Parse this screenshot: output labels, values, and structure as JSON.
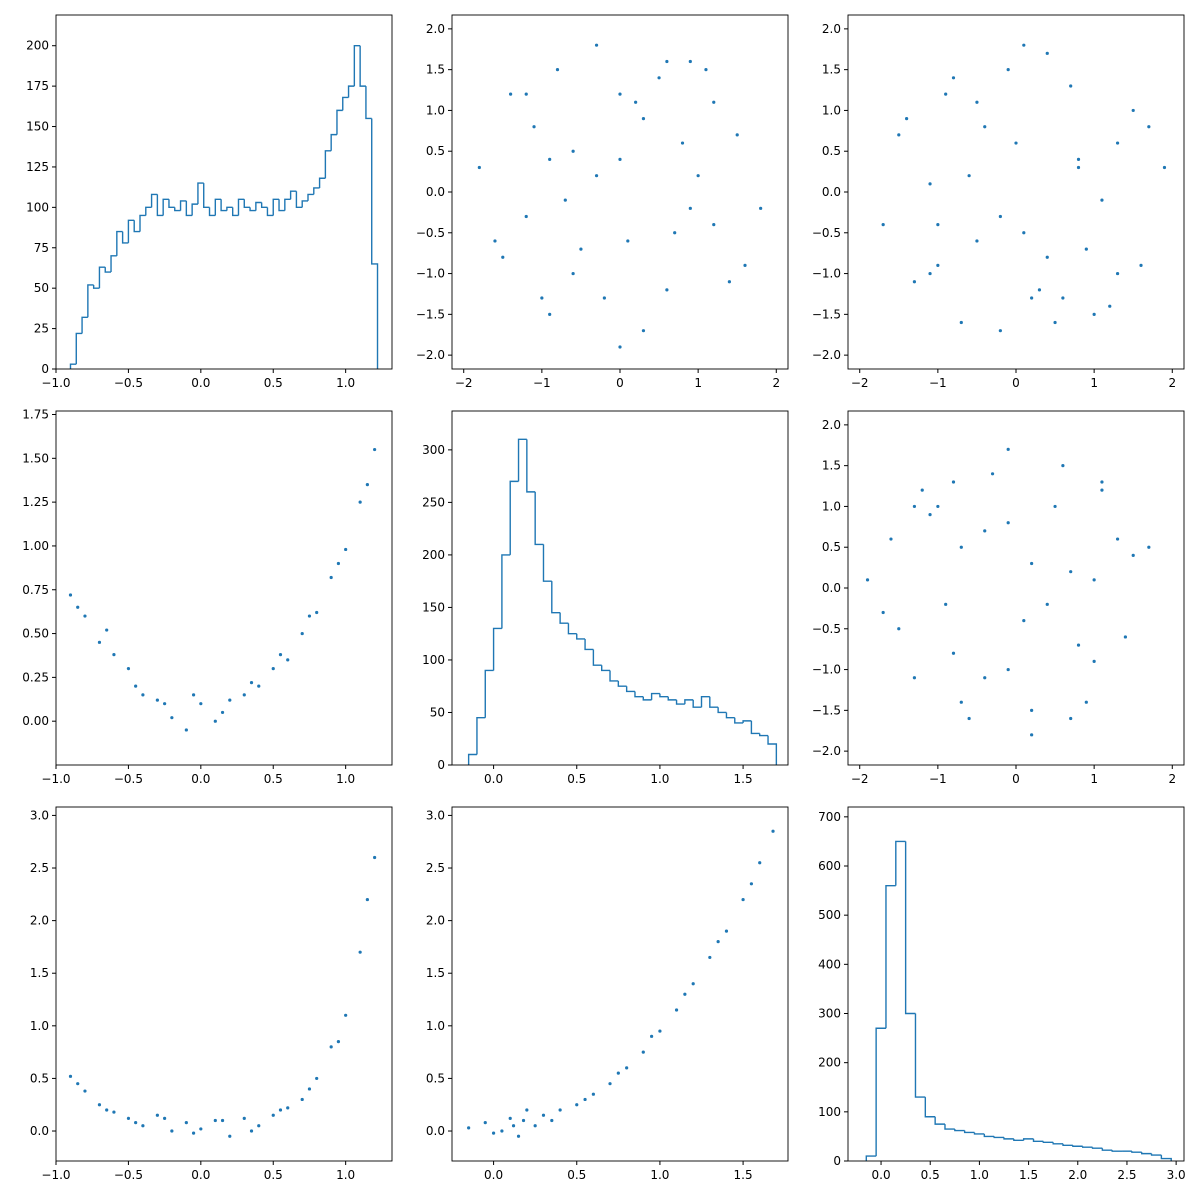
{
  "chart_data": [
    {
      "type": "histogram",
      "color": "#1f77b4",
      "xlim": [
        -1.0,
        1.32
      ],
      "ylim": [
        0,
        219
      ],
      "xticks": [
        {
          "value": -1.0,
          "label": "−1.0"
        },
        {
          "value": -0.5,
          "label": "−0.5"
        },
        {
          "value": 0.0,
          "label": "0.0"
        },
        {
          "value": 0.5,
          "label": "0.5"
        },
        {
          "value": 1.0,
          "label": "1.0"
        }
      ],
      "yticks": [
        0,
        25,
        50,
        75,
        100,
        125,
        150,
        175,
        200
      ],
      "bins": [
        -0.9,
        -0.86,
        -0.82,
        -0.78,
        -0.74,
        -0.7,
        -0.66,
        -0.62,
        -0.58,
        -0.54,
        -0.5,
        -0.46,
        -0.42,
        -0.38,
        -0.34,
        -0.3,
        -0.26,
        -0.22,
        -0.18,
        -0.14,
        -0.1,
        -0.06,
        -0.02,
        0.02,
        0.06,
        0.1,
        0.14,
        0.18,
        0.22,
        0.26,
        0.3,
        0.34,
        0.38,
        0.42,
        0.46,
        0.5,
        0.54,
        0.58,
        0.62,
        0.66,
        0.7,
        0.74,
        0.78,
        0.82,
        0.86,
        0.9,
        0.94,
        0.98,
        1.02,
        1.06,
        1.1,
        1.14,
        1.18,
        1.22
      ],
      "values": [
        3,
        22,
        32,
        52,
        50,
        63,
        60,
        70,
        85,
        78,
        92,
        85,
        95,
        100,
        108,
        95,
        105,
        100,
        98,
        104,
        95,
        102,
        115,
        100,
        95,
        105,
        98,
        100,
        95,
        105,
        100,
        98,
        103,
        100,
        95,
        105,
        98,
        105,
        110,
        100,
        104,
        108,
        112,
        118,
        135,
        145,
        160,
        168,
        175,
        200,
        175,
        155,
        65
      ]
    },
    {
      "type": "scatter",
      "color": "#1f77b4",
      "xlim": [
        -2.15,
        2.15
      ],
      "ylim": [
        -2.17,
        2.17
      ],
      "xticks": [
        {
          "value": -2,
          "label": "−2"
        },
        {
          "value": -1,
          "label": "−1"
        },
        0,
        1,
        2
      ],
      "yticks": [
        {
          "value": -2.0,
          "label": "−2.0"
        },
        {
          "value": -1.5,
          "label": "−1.5"
        },
        {
          "value": -1.0,
          "label": "−1.0"
        },
        {
          "value": -0.5,
          "label": "−0.5"
        },
        {
          "value": 0.0,
          "label": "0.0"
        },
        {
          "value": 0.5,
          "label": "0.5"
        },
        {
          "value": 1.0,
          "label": "1.0"
        },
        {
          "value": 1.5,
          "label": "1.5"
        },
        {
          "value": 2.0,
          "label": "2.0"
        }
      ],
      "x": [
        -1.8,
        -1.5,
        -1.2,
        -0.9,
        -0.6,
        -0.3,
        0,
        0.3,
        0.6,
        0.9,
        1.2,
        1.5,
        1.8,
        -1.4,
        -1,
        -0.5,
        0,
        0.5,
        1,
        1.4,
        -1.6,
        -1.1,
        -0.7,
        -0.2,
        0.2,
        0.7,
        1.1,
        1.6,
        -1.2,
        -0.8,
        -0.3,
        0.3,
        0.8,
        1.2,
        -0.6,
        0,
        0.6,
        -0.9,
        0.1,
        0.9
      ],
      "y": [
        0.3,
        -0.8,
        1.2,
        -1.5,
        0.5,
        1.8,
        -1.9,
        0.9,
        -1.2,
        1.6,
        -0.4,
        0.7,
        -0.2,
        1.2,
        -1.3,
        -0.7,
        0.4,
        1.4,
        0.2,
        -1.1,
        -0.6,
        0.8,
        -0.1,
        -1.3,
        1.1,
        -0.5,
        1.5,
        -0.9,
        -0.3,
        1.5,
        0.2,
        -1.7,
        0.6,
        1.1,
        -1,
        1.2,
        1.6,
        0.4,
        -0.6,
        -0.2
      ]
    },
    {
      "type": "scatter",
      "color": "#1f77b4",
      "xlim": [
        -2.15,
        2.15
      ],
      "ylim": [
        -2.17,
        2.17
      ],
      "xticks": [
        {
          "value": -2,
          "label": "−2"
        },
        {
          "value": -1,
          "label": "−1"
        },
        0,
        1,
        2
      ],
      "yticks": [
        {
          "value": -2.0,
          "label": "−2.0"
        },
        {
          "value": -1.5,
          "label": "−1.5"
        },
        {
          "value": -1.0,
          "label": "−1.0"
        },
        {
          "value": -0.5,
          "label": "−0.5"
        },
        {
          "value": 0.0,
          "label": "0.0"
        },
        {
          "value": 0.5,
          "label": "0.5"
        },
        {
          "value": 1.0,
          "label": "1.0"
        },
        {
          "value": 1.5,
          "label": "1.5"
        },
        {
          "value": 2.0,
          "label": "2.0"
        }
      ],
      "x": [
        -1.7,
        -1.4,
        -1.1,
        -0.8,
        -0.5,
        -0.2,
        0.1,
        0.4,
        0.7,
        1.0,
        1.3,
        1.6,
        1.9,
        -1.3,
        -0.9,
        -0.4,
        0.1,
        0.6,
        1.1,
        1.5,
        -1.5,
        -1.0,
        -0.6,
        -0.1,
        0.3,
        0.8,
        1.2,
        1.7,
        -1.1,
        -0.7,
        -0.2,
        0.4,
        0.9,
        1.3,
        -0.5,
        0.2,
        0.5,
        -1.0,
        0.0,
        0.8
      ],
      "y": [
        -0.4,
        0.9,
        -1.0,
        1.4,
        -0.6,
        -1.7,
        1.8,
        -0.8,
        1.3,
        -1.5,
        0.6,
        -0.9,
        0.3,
        -1.1,
        1.2,
        0.8,
        -0.5,
        -1.3,
        -0.1,
        1.0,
        0.7,
        -0.9,
        0.2,
        1.5,
        -1.2,
        0.4,
        -1.4,
        0.8,
        0.1,
        -1.6,
        -0.3,
        1.7,
        -0.7,
        -1.0,
        1.1,
        -1.3,
        -1.6,
        -0.4,
        0.6,
        0.3
      ]
    },
    {
      "type": "scatter",
      "color": "#1f77b4",
      "xlim": [
        -1.0,
        1.32
      ],
      "ylim": [
        -0.25,
        1.77
      ],
      "xticks": [
        {
          "value": -1.0,
          "label": "−1.0"
        },
        {
          "value": -0.5,
          "label": "−0.5"
        },
        {
          "value": 0.0,
          "label": "0.0"
        },
        {
          "value": 0.5,
          "label": "0.5"
        },
        {
          "value": 1.0,
          "label": "1.0"
        }
      ],
      "yticks": [
        {
          "value": 0,
          "label": "0.00"
        },
        {
          "value": 0.25,
          "label": "0.25"
        },
        {
          "value": 0.5,
          "label": "0.50"
        },
        {
          "value": 0.75,
          "label": "0.75"
        },
        {
          "value": 1.0,
          "label": "1.00"
        },
        {
          "value": 1.25,
          "label": "1.25"
        },
        {
          "value": 1.5,
          "label": "1.50"
        },
        {
          "value": 1.75,
          "label": "1.75"
        }
      ],
      "x": [
        -0.9,
        -0.8,
        -0.7,
        -0.6,
        -0.5,
        -0.4,
        -0.3,
        -0.2,
        -0.1,
        0,
        0.1,
        0.2,
        0.3,
        0.4,
        0.5,
        0.6,
        0.7,
        0.8,
        0.9,
        1,
        1.1,
        1.2,
        -0.85,
        -0.65,
        -0.45,
        -0.25,
        -0.05,
        0.15,
        0.35,
        0.55,
        0.75,
        0.95,
        1.15
      ],
      "y": [
        0.72,
        0.6,
        0.45,
        0.38,
        0.3,
        0.15,
        0.12,
        0.02,
        -0.05,
        0.1,
        0.0,
        0.12,
        0.15,
        0.2,
        0.3,
        0.35,
        0.5,
        0.62,
        0.82,
        0.98,
        1.25,
        1.55,
        0.65,
        0.52,
        0.2,
        0.1,
        0.15,
        0.05,
        0.22,
        0.38,
        0.6,
        0.9,
        1.35
      ]
    },
    {
      "type": "histogram",
      "color": "#1f77b4",
      "xlim": [
        -0.25,
        1.77
      ],
      "ylim": [
        0,
        337
      ],
      "xticks": [
        {
          "value": 0.0,
          "label": "0.0"
        },
        {
          "value": 0.5,
          "label": "0.5"
        },
        {
          "value": 1.0,
          "label": "1.0"
        },
        {
          "value": 1.5,
          "label": "1.5"
        }
      ],
      "yticks": [
        0,
        50,
        100,
        150,
        200,
        250,
        300
      ],
      "bins": [
        -0.15,
        -0.1,
        -0.05,
        0.0,
        0.05,
        0.1,
        0.15,
        0.2,
        0.25,
        0.3,
        0.35,
        0.4,
        0.45,
        0.5,
        0.55,
        0.6,
        0.65,
        0.7,
        0.75,
        0.8,
        0.85,
        0.9,
        0.95,
        1.0,
        1.05,
        1.1,
        1.15,
        1.2,
        1.25,
        1.3,
        1.35,
        1.4,
        1.45,
        1.5,
        1.55,
        1.6,
        1.65,
        1.7
      ],
      "values": [
        10,
        45,
        90,
        130,
        200,
        270,
        310,
        260,
        210,
        175,
        145,
        135,
        125,
        120,
        110,
        95,
        90,
        80,
        75,
        70,
        65,
        62,
        68,
        65,
        62,
        58,
        62,
        55,
        65,
        55,
        50,
        45,
        40,
        42,
        30,
        28,
        20
      ]
    },
    {
      "type": "scatter",
      "color": "#1f77b4",
      "xlim": [
        -2.15,
        2.15
      ],
      "ylim": [
        -2.17,
        2.17
      ],
      "xticks": [
        {
          "value": -2,
          "label": "−2"
        },
        {
          "value": -1,
          "label": "−1"
        },
        0,
        1,
        2
      ],
      "yticks": [
        {
          "value": -2.0,
          "label": "−2.0"
        },
        {
          "value": -1.5,
          "label": "−1.5"
        },
        {
          "value": -1.0,
          "label": "−1.0"
        },
        {
          "value": -0.5,
          "label": "−0.5"
        },
        {
          "value": 0.0,
          "label": "0.0"
        },
        {
          "value": 0.5,
          "label": "0.5"
        },
        {
          "value": 1.0,
          "label": "1.0"
        },
        {
          "value": 1.5,
          "label": "1.5"
        },
        {
          "value": 2.0,
          "label": "2.0"
        }
      ],
      "x": [
        -1.9,
        -1.6,
        -1.3,
        -1.0,
        -0.7,
        -0.4,
        -0.1,
        0.2,
        0.5,
        0.8,
        1.1,
        1.4,
        1.7,
        -1.5,
        -1.1,
        -0.6,
        -0.1,
        0.4,
        0.9,
        1.3,
        -1.7,
        -1.2,
        -0.8,
        -0.3,
        0.1,
        0.6,
        1.0,
        1.5,
        -1.3,
        -0.9,
        -0.4,
        0.2,
        0.7,
        1.1,
        -0.7,
        -0.1,
        0.7,
        -0.8,
        0.2,
        1.0
      ],
      "y": [
        0.1,
        0.6,
        -1.1,
        1.0,
        -1.4,
        0.7,
        1.7,
        -1.5,
        1.0,
        -0.7,
        1.3,
        -0.6,
        0.5,
        -0.5,
        0.9,
        -1.6,
        0.8,
        -0.2,
        -1.4,
        0.6,
        -0.3,
        1.2,
        -0.8,
        1.4,
        -0.4,
        1.5,
        -0.9,
        0.4,
        1.0,
        -0.2,
        -1.1,
        0.3,
        -1.6,
        1.2,
        0.5,
        -1.0,
        0.2,
        1.3,
        -1.8,
        0.1
      ]
    },
    {
      "type": "scatter",
      "color": "#1f77b4",
      "xlim": [
        -1.0,
        1.32
      ],
      "ylim": [
        -0.285,
        3.08
      ],
      "xticks": [
        {
          "value": -1.0,
          "label": "−1.0"
        },
        {
          "value": -0.5,
          "label": "−0.5"
        },
        {
          "value": 0.0,
          "label": "0.0"
        },
        {
          "value": 0.5,
          "label": "0.5"
        },
        {
          "value": 1.0,
          "label": "1.0"
        }
      ],
      "yticks": [
        {
          "value": 0.0,
          "label": "0.0"
        },
        {
          "value": 0.5,
          "label": "0.5"
        },
        {
          "value": 1.0,
          "label": "1.0"
        },
        {
          "value": 1.5,
          "label": "1.5"
        },
        {
          "value": 2.0,
          "label": "2.0"
        },
        {
          "value": 2.5,
          "label": "2.5"
        },
        {
          "value": 3.0,
          "label": "3.0"
        }
      ],
      "x": [
        -0.9,
        -0.8,
        -0.7,
        -0.6,
        -0.5,
        -0.4,
        -0.3,
        -0.2,
        -0.1,
        0,
        0.1,
        0.2,
        0.3,
        0.4,
        0.5,
        0.6,
        0.7,
        0.8,
        0.9,
        1,
        1.1,
        1.2,
        -0.85,
        -0.65,
        -0.45,
        -0.25,
        -0.05,
        0.15,
        0.35,
        0.55,
        0.75,
        0.95,
        1.15
      ],
      "y": [
        0.52,
        0.38,
        0.25,
        0.18,
        0.12,
        0.05,
        0.15,
        0.0,
        0.08,
        0.02,
        0.1,
        -0.05,
        0.12,
        0.05,
        0.15,
        0.22,
        0.3,
        0.5,
        0.8,
        1.1,
        1.7,
        2.6,
        0.45,
        0.2,
        0.08,
        0.12,
        -0.02,
        0.1,
        0.0,
        0.2,
        0.4,
        0.85,
        2.2
      ]
    },
    {
      "type": "scatter",
      "color": "#1f77b4",
      "xlim": [
        -0.25,
        1.77
      ],
      "ylim": [
        -0.285,
        3.08
      ],
      "xticks": [
        {
          "value": 0.0,
          "label": "0.0"
        },
        {
          "value": 0.5,
          "label": "0.5"
        },
        {
          "value": 1.0,
          "label": "1.0"
        },
        {
          "value": 1.5,
          "label": "1.5"
        }
      ],
      "yticks": [
        {
          "value": 0.0,
          "label": "0.0"
        },
        {
          "value": 0.5,
          "label": "0.5"
        },
        {
          "value": 1.0,
          "label": "1.0"
        },
        {
          "value": 1.5,
          "label": "1.5"
        },
        {
          "value": 2.0,
          "label": "2.0"
        },
        {
          "value": 2.5,
          "label": "2.5"
        },
        {
          "value": 3.0,
          "label": "3.0"
        }
      ],
      "x": [
        -0.15,
        -0.05,
        0.05,
        0.1,
        0.15,
        0.2,
        0.25,
        0.3,
        0.4,
        0.5,
        0.6,
        0.7,
        0.8,
        0.9,
        1.0,
        1.1,
        1.2,
        1.3,
        1.4,
        1.5,
        1.6,
        1.68,
        0.0,
        0.12,
        0.18,
        0.35,
        0.55,
        0.75,
        0.95,
        1.15,
        1.35,
        1.55
      ],
      "y": [
        0.03,
        0.08,
        0.0,
        0.12,
        -0.05,
        0.2,
        0.05,
        0.15,
        0.2,
        0.25,
        0.35,
        0.45,
        0.6,
        0.75,
        0.95,
        1.15,
        1.4,
        1.65,
        1.9,
        2.2,
        2.55,
        2.85,
        -0.02,
        0.05,
        0.1,
        0.1,
        0.3,
        0.55,
        0.9,
        1.3,
        1.8,
        2.35
      ]
    },
    {
      "type": "histogram",
      "color": "#1f77b4",
      "xlim": [
        -0.336,
        3.08
      ],
      "ylim": [
        0,
        720
      ],
      "xticks": [
        {
          "value": 0.0,
          "label": "0.0"
        },
        {
          "value": 0.5,
          "label": "0.5"
        },
        {
          "value": 1.0,
          "label": "1.0"
        },
        {
          "value": 1.5,
          "label": "1.5"
        },
        {
          "value": 2.0,
          "label": "2.0"
        },
        {
          "value": 2.5,
          "label": "2.5"
        },
        {
          "value": 3.0,
          "label": "3.0"
        }
      ],
      "yticks": [
        0,
        100,
        200,
        300,
        400,
        500,
        600,
        700
      ],
      "bins": [
        -0.15,
        -0.05,
        0.05,
        0.15,
        0.25,
        0.35,
        0.45,
        0.55,
        0.65,
        0.75,
        0.85,
        0.95,
        1.05,
        1.15,
        1.25,
        1.35,
        1.45,
        1.55,
        1.65,
        1.75,
        1.85,
        1.95,
        2.05,
        2.15,
        2.25,
        2.35,
        2.45,
        2.55,
        2.65,
        2.75,
        2.85,
        2.95
      ],
      "values": [
        10,
        270,
        560,
        650,
        300,
        130,
        90,
        75,
        65,
        62,
        58,
        55,
        50,
        48,
        45,
        42,
        45,
        40,
        38,
        35,
        32,
        30,
        28,
        26,
        22,
        20,
        20,
        18,
        15,
        12,
        5
      ]
    }
  ]
}
